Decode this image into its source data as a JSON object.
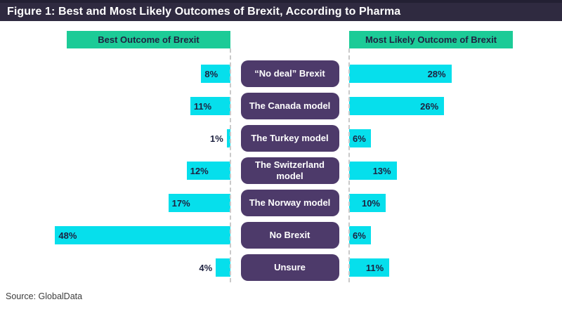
{
  "title": "Figure 1: Best and Most Likely Outcomes of Brexit, According to Pharma",
  "source": "Source: GlobalData",
  "chart_data": {
    "type": "bar",
    "subtype": "diverging-butterfly",
    "left_header": "Best Outcome of Brexit",
    "right_header": "Most Likely Outcome of Brexit",
    "categories": [
      "“No deal” Brexit",
      "The Canada model",
      "The Turkey model",
      "The Switzerland model",
      "The Norway model",
      "No Brexit",
      "Unsure"
    ],
    "series": [
      {
        "name": "Best Outcome of Brexit",
        "side": "left",
        "values": [
          8,
          11,
          1,
          12,
          17,
          48,
          4
        ]
      },
      {
        "name": "Most Likely Outcome of Brexit",
        "side": "right",
        "values": [
          28,
          26,
          6,
          13,
          10,
          6,
          11
        ]
      }
    ],
    "unit": "%",
    "value_labels": {
      "left": [
        "8%",
        "11%",
        "1%",
        "12%",
        "17%",
        "48%",
        "4%"
      ],
      "right": [
        "28%",
        "26%",
        "6%",
        "13%",
        "10%",
        "6%",
        "11%"
      ]
    },
    "xlim_percent": [
      0,
      50
    ],
    "grid": "dashed-center-axes",
    "colors": {
      "bar": "#06dfec",
      "category_box": "#4d3a6a",
      "header_bg": "#1ccb97",
      "header_text": "#1e2240",
      "title_bar_bg": "#2f2a40",
      "title_text": "#ffffff",
      "value_label_text": "#1e2240",
      "axis_dash": "#c9c9c9"
    }
  }
}
